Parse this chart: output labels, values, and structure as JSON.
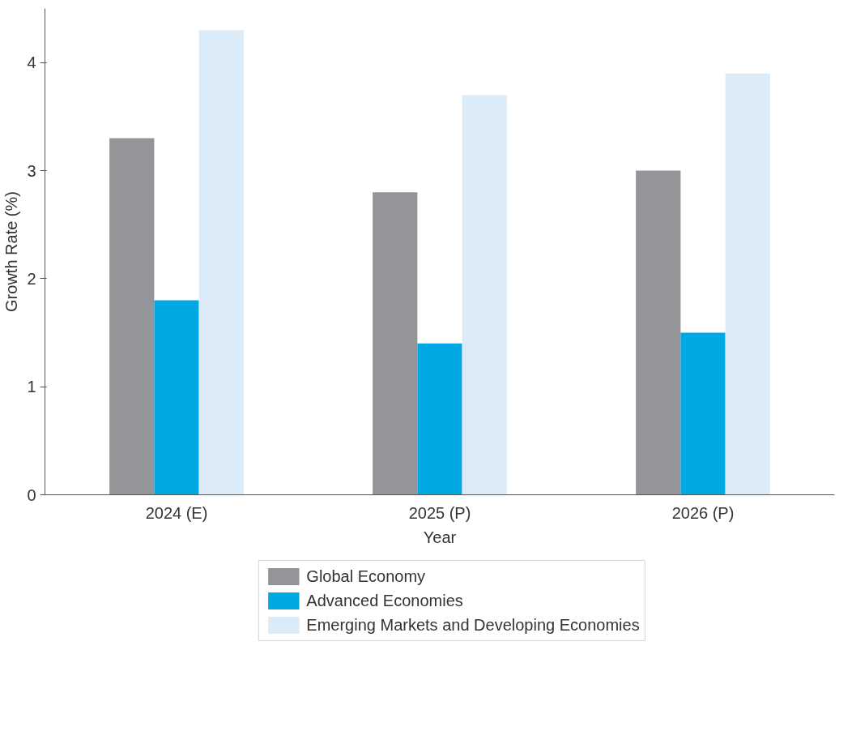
{
  "chart_data": {
    "type": "bar",
    "xlabel": "Year",
    "ylabel": "Growth Rate (%)",
    "categories": [
      "2024 (E)",
      "2025 (P)",
      "2026 (P)"
    ],
    "series": [
      {
        "name": "Global Economy",
        "color": "#949598",
        "values": [
          3.3,
          2.8,
          3.0
        ]
      },
      {
        "name": "Advanced Economies",
        "color": "#00a9e3",
        "values": [
          1.8,
          1.4,
          1.5
        ]
      },
      {
        "name": "Emerging Markets and Developing Economies",
        "color": "#dbecf8",
        "values": [
          4.3,
          3.7,
          3.9
        ]
      }
    ],
    "ylim": [
      0,
      4.5
    ],
    "yticks": [
      0,
      1,
      2,
      3,
      4
    ],
    "grid": false,
    "legend": "bottom"
  }
}
